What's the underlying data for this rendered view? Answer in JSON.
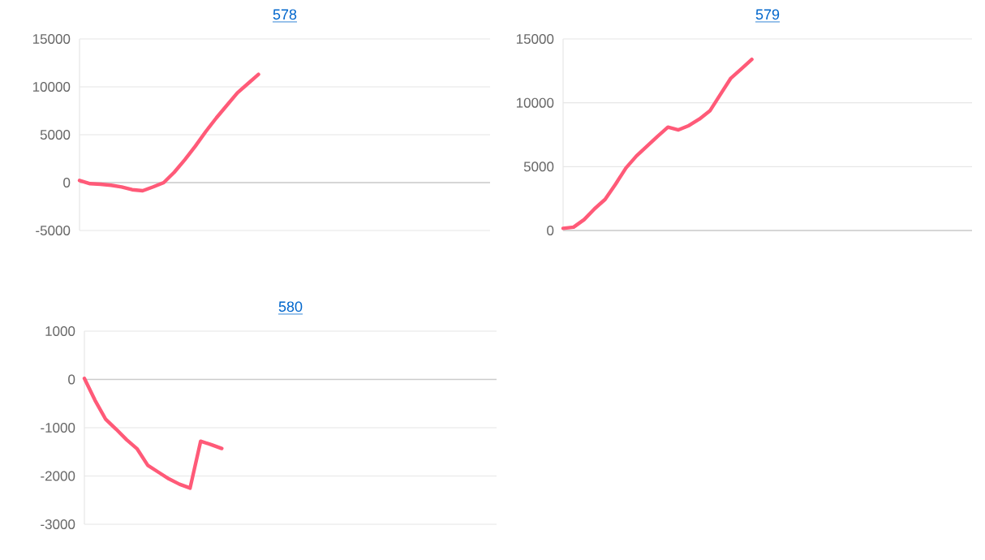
{
  "chart_data": [
    {
      "type": "line",
      "title": "578",
      "categories": [
        null,
        null,
        null,
        null,
        null,
        null,
        null,
        null,
        null,
        null,
        null,
        null,
        null,
        null,
        null,
        null,
        null,
        null,
        null,
        null,
        null,
        null,
        null,
        null,
        null,
        null,
        null,
        null,
        null,
        null,
        null,
        null,
        null,
        null,
        null,
        null,
        null,
        null,
        null,
        null
      ],
      "series": [
        {
          "color": "#ff5a78",
          "values": [
            230,
            -110,
            -170,
            -280,
            -450,
            -740,
            -850,
            -450,
            0,
            1080,
            2390,
            3800,
            5340,
            6760,
            8070,
            9380,
            10340,
            11300,
            null,
            null,
            null,
            null,
            null,
            null,
            null,
            null,
            null,
            null,
            null,
            null,
            null,
            null,
            null,
            null,
            null,
            null,
            null,
            null,
            null,
            null
          ]
        }
      ],
      "ylim": [
        -5000,
        15000
      ],
      "yticks": [
        -5000,
        0,
        5000,
        10000,
        15000
      ],
      "grid": "y",
      "tick_labels": "y"
    },
    {
      "type": "line",
      "title": "579",
      "categories": [
        null,
        null,
        null,
        null,
        null,
        null,
        null,
        null,
        null,
        null,
        null,
        null,
        null,
        null,
        null,
        null,
        null,
        null,
        null,
        null,
        null,
        null,
        null,
        null,
        null,
        null,
        null,
        null,
        null,
        null,
        null,
        null,
        null,
        null,
        null,
        null,
        null,
        null,
        null,
        null
      ],
      "series": [
        {
          "color": "#ff5a78",
          "values": [
            170,
            260,
            850,
            1700,
            2430,
            3620,
            4900,
            5840,
            6600,
            7370,
            8090,
            7880,
            8220,
            8730,
            9370,
            10650,
            11930,
            12650,
            13400,
            null,
            null,
            null,
            null,
            null,
            null,
            null,
            null,
            null,
            null,
            null,
            null,
            null,
            null,
            null,
            null,
            null,
            null,
            null,
            null,
            null
          ]
        }
      ],
      "ylim": [
        0,
        15000
      ],
      "yticks": [
        0,
        5000,
        10000,
        15000
      ],
      "grid": "y",
      "tick_labels": "y"
    },
    {
      "type": "line",
      "title": "580",
      "categories": [
        null,
        null,
        null,
        null,
        null,
        null,
        null,
        null,
        null,
        null,
        null,
        null,
        null,
        null,
        null,
        null,
        null,
        null,
        null,
        null,
        null,
        null,
        null,
        null,
        null,
        null,
        null,
        null,
        null,
        null,
        null,
        null,
        null,
        null,
        null,
        null,
        null,
        null,
        null,
        null
      ],
      "series": [
        {
          "color": "#ff5a78",
          "values": [
            20,
            -430,
            -820,
            -1030,
            -1250,
            -1440,
            -1780,
            -1920,
            -2060,
            -2170,
            -2250,
            -1280,
            -1350,
            -1430,
            null,
            null,
            null,
            null,
            null,
            null,
            null,
            null,
            null,
            null,
            null,
            null,
            null,
            null,
            null,
            null,
            null,
            null,
            null,
            null,
            null,
            null,
            null,
            null,
            null,
            null
          ]
        }
      ],
      "ylim": [
        -3000,
        1000
      ],
      "yticks": [
        -3000,
        -2000,
        -1000,
        0,
        1000
      ],
      "grid": "y",
      "tick_labels": "y"
    }
  ]
}
